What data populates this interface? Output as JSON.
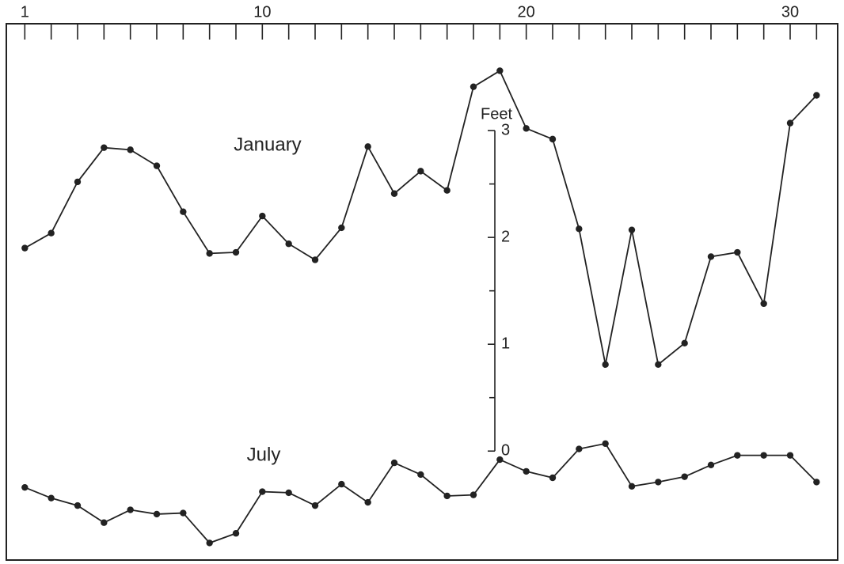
{
  "chart_data": {
    "type": "line",
    "y_label": "Feet",
    "x": [
      1,
      2,
      3,
      4,
      5,
      6,
      7,
      8,
      9,
      10,
      11,
      12,
      13,
      14,
      15,
      16,
      17,
      18,
      19,
      20,
      21,
      22,
      23,
      24,
      25,
      26,
      27,
      28,
      29,
      30,
      31
    ],
    "xlim": [
      0.3,
      31.8
    ],
    "xticks": [
      1,
      10,
      20,
      30
    ],
    "ylim": [
      -1.02,
      4.0
    ],
    "yticks": [
      0,
      1,
      2,
      3
    ],
    "y_minor_ticks": [
      0.5,
      1.5,
      2.5
    ],
    "grid": false,
    "series": [
      {
        "name": "January",
        "color": "#222222",
        "values": [
          1.9,
          2.04,
          2.52,
          2.84,
          2.82,
          2.67,
          2.24,
          1.85,
          1.86,
          2.2,
          1.94,
          1.79,
          2.09,
          2.85,
          2.41,
          2.62,
          2.44,
          3.41,
          3.56,
          3.02,
          2.92,
          2.08,
          0.81,
          2.07,
          0.81,
          1.01,
          1.82,
          1.86,
          1.38,
          3.07,
          3.33
        ]
      },
      {
        "name": "July",
        "color": "#222222",
        "values": [
          -0.34,
          -0.44,
          -0.51,
          -0.67,
          -0.55,
          -0.59,
          -0.58,
          -0.86,
          -0.77,
          -0.38,
          -0.39,
          -0.51,
          -0.31,
          -0.48,
          -0.11,
          -0.22,
          -0.42,
          -0.41,
          -0.08,
          -0.19,
          -0.25,
          0.02,
          0.07,
          -0.33,
          -0.29,
          -0.24,
          -0.13,
          -0.04,
          -0.04,
          -0.04,
          -0.29
        ]
      }
    ]
  }
}
